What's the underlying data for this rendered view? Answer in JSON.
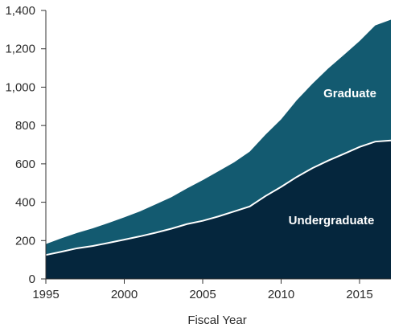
{
  "chart_data": {
    "type": "area",
    "stacked": true,
    "xlabel": "Fiscal Year",
    "ylabel": "",
    "xlim": [
      1995,
      2017
    ],
    "ylim": [
      0,
      1400
    ],
    "x_ticks": [
      1995,
      2000,
      2005,
      2010,
      2015
    ],
    "y_ticks": [
      0,
      200,
      400,
      600,
      800,
      1000,
      1200,
      1400
    ],
    "y_tick_labels": [
      "0",
      "200",
      "400",
      "600",
      "800",
      "1,000",
      "1,200",
      "1,400"
    ],
    "grid": false,
    "legend": "none; series names printed inside areas",
    "x": [
      1995,
      1996,
      1997,
      1998,
      1999,
      2000,
      2001,
      2002,
      2003,
      2004,
      2005,
      2006,
      2007,
      2008,
      2009,
      2010,
      2011,
      2012,
      2013,
      2014,
      2015,
      2016,
      2017
    ],
    "series": [
      {
        "name": "Undergraduate",
        "color": "#05263d",
        "values": [
          125,
          142,
          160,
          172,
          188,
          205,
          222,
          241,
          262,
          286,
          303,
          326,
          352,
          378,
          432,
          480,
          532,
          578,
          617,
          652,
          688,
          716,
          722
        ]
      },
      {
        "name": "Graduate",
        "color": "#135a70",
        "values": [
          57,
          70,
          80,
          92,
          104,
          116,
          130,
          148,
          164,
          186,
          212,
          235,
          256,
          286,
          320,
          352,
          400,
          440,
          480,
          516,
          552,
          606,
          630
        ]
      }
    ]
  }
}
